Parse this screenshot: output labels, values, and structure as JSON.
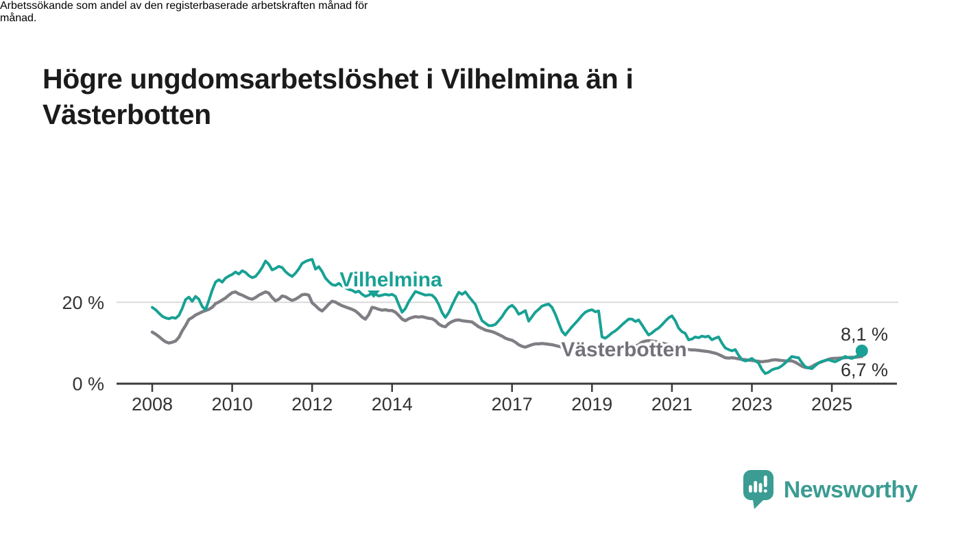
{
  "header": {
    "title_lines": [
      "Högre ungdomsarbetslöshet i Vilhelmina än i",
      "Västerbotten"
    ],
    "subtitle_lines": [
      "Arbetssökande som andel av den registerbaserade arbetskraften månad för",
      "månad."
    ]
  },
  "chart_data": {
    "type": "line",
    "title": "Högre ungdomsarbetslöshet i Vilhelmina än i Västerbotten",
    "subtitle": "Arbetssökande som andel av den registerbaserade arbetskraften månad för månad.",
    "x_start": {
      "year": 2008,
      "month": 1
    },
    "x_interval": "monthly",
    "x_tick_years": [
      2008,
      2010,
      2012,
      2014,
      2017,
      2019,
      2021,
      2023,
      2025
    ],
    "y_axis": {
      "ticks": [
        {
          "value": 0,
          "label": "0 %"
        },
        {
          "value": 20,
          "label": "20 %"
        }
      ],
      "ylim": [
        0,
        35
      ],
      "gridline_at": 20
    },
    "grid": "horizontal-only",
    "legend_position": "inline-labels",
    "series": [
      {
        "name": "Vilhelmina",
        "label": "Vilhelmina",
        "color": "#18a194",
        "end_label": "8,1 %",
        "end_value": 8.1,
        "values": [
          18.8,
          18.2,
          17.4,
          16.6,
          16.2,
          16.0,
          16.3,
          16.1,
          16.8,
          18.5,
          20.7,
          21.3,
          20.3,
          21.5,
          20.8,
          19.0,
          18.2,
          20.5,
          23.0,
          25.0,
          25.6,
          25.0,
          26.0,
          26.5,
          26.9,
          27.5,
          27.0,
          27.8,
          27.4,
          26.6,
          26.1,
          26.4,
          27.4,
          28.6,
          30.2,
          29.4,
          28.0,
          28.4,
          28.9,
          28.6,
          27.6,
          26.9,
          26.4,
          27.2,
          28.3,
          29.6,
          30.1,
          30.4,
          30.6,
          28.2,
          28.8,
          27.6,
          26.0,
          25.1,
          24.4,
          24.2,
          24.7,
          24.1,
          23.6,
          23.2,
          23.0,
          22.5,
          22.8,
          22.0,
          21.5,
          21.8,
          22.3,
          22.0,
          21.6,
          21.8,
          22.0,
          21.8,
          22.0,
          21.5,
          19.5,
          17.6,
          18.5,
          20.2,
          21.5,
          22.7,
          22.4,
          22.1,
          21.8,
          21.9,
          21.8,
          21.0,
          19.5,
          17.5,
          16.3,
          17.5,
          19.3,
          21.0,
          22.5,
          22.0,
          22.6,
          21.5,
          20.5,
          19.5,
          17.4,
          15.5,
          14.9,
          14.3,
          14.3,
          14.6,
          15.5,
          16.5,
          17.8,
          18.8,
          19.3,
          18.5,
          17.1,
          17.5,
          18.0,
          15.4,
          16.5,
          17.6,
          18.3,
          19.1,
          19.4,
          19.6,
          18.8,
          17.1,
          15.0,
          12.9,
          12.0,
          13.0,
          14.0,
          14.9,
          15.8,
          16.8,
          17.6,
          18.0,
          18.2,
          17.7,
          17.9,
          11.5,
          11.2,
          11.8,
          12.5,
          13.0,
          13.7,
          14.5,
          15.2,
          15.9,
          15.9,
          15.3,
          15.7,
          14.5,
          13.2,
          12.0,
          12.5,
          13.2,
          13.7,
          14.5,
          15.4,
          16.2,
          16.7,
          15.5,
          13.7,
          12.8,
          12.4,
          10.8,
          11.0,
          11.5,
          11.3,
          11.7,
          11.5,
          11.7,
          10.8,
          11.2,
          11.5,
          10.0,
          8.8,
          8.4,
          8.1,
          8.4,
          7.0,
          5.9,
          5.6,
          5.8,
          6.2,
          5.6,
          5.1,
          3.5,
          2.5,
          2.8,
          3.4,
          3.7,
          3.9,
          4.4,
          5.1,
          5.9,
          6.7,
          6.5,
          6.4,
          5.2,
          4.2,
          3.9,
          3.7,
          4.4,
          5.1,
          5.5,
          5.7,
          5.9,
          5.6,
          5.4,
          5.8,
          6.2,
          6.7,
          6.4,
          6.2,
          6.6,
          7.0,
          8.1
        ]
      },
      {
        "name": "Västerbotten",
        "label": "Västerbotten",
        "color": "#7f7e84",
        "label_color": "#73727a",
        "end_label": "6,7 %",
        "end_value": 6.7,
        "values": [
          12.7,
          12.2,
          11.6,
          10.9,
          10.3,
          10.0,
          10.2,
          10.5,
          11.4,
          13.0,
          14.3,
          15.8,
          16.3,
          16.9,
          17.3,
          17.7,
          18.0,
          18.3,
          18.8,
          19.7,
          20.1,
          20.6,
          21.1,
          21.8,
          22.4,
          22.6,
          22.1,
          21.8,
          21.4,
          21.0,
          20.8,
          21.2,
          21.8,
          22.2,
          22.6,
          22.3,
          21.2,
          20.4,
          20.8,
          21.6,
          21.4,
          20.9,
          20.5,
          20.8,
          21.3,
          21.9,
          22.0,
          21.8,
          19.9,
          19.2,
          18.4,
          17.9,
          18.7,
          19.6,
          20.3,
          20.1,
          19.6,
          19.2,
          18.9,
          18.6,
          18.3,
          17.9,
          17.2,
          16.4,
          15.9,
          17.0,
          18.8,
          18.6,
          18.3,
          18.1,
          18.2,
          18.0,
          18.0,
          17.6,
          16.8,
          15.9,
          15.5,
          16.0,
          16.3,
          16.5,
          16.4,
          16.5,
          16.3,
          16.1,
          16.0,
          15.5,
          14.7,
          14.2,
          14.0,
          14.8,
          15.3,
          15.6,
          15.7,
          15.5,
          15.4,
          15.3,
          15.2,
          14.6,
          14.0,
          13.6,
          13.2,
          13.0,
          12.8,
          12.5,
          12.1,
          11.7,
          11.2,
          10.9,
          10.7,
          10.2,
          9.6,
          9.2,
          9.0,
          9.3,
          9.6,
          9.8,
          9.8,
          9.9,
          9.8,
          9.7,
          9.6,
          9.4,
          9.2,
          9.0,
          8.9,
          9.0,
          9.1,
          9.2,
          9.1,
          9.0,
          8.9,
          8.9,
          8.8,
          8.7,
          8.6,
          8.6,
          8.5,
          8.6,
          8.7,
          8.8,
          8.8,
          8.9,
          8.9,
          9.0,
          9.1,
          9.2,
          9.6,
          10.2,
          10.5,
          10.6,
          10.5,
          10.4,
          10.2,
          10.0,
          9.8,
          9.6,
          9.4,
          9.2,
          9.0,
          8.8,
          8.6,
          8.4,
          8.3,
          8.3,
          8.2,
          8.1,
          8.0,
          7.9,
          7.7,
          7.5,
          7.2,
          6.8,
          6.4,
          6.3,
          6.4,
          6.3,
          6.1,
          6.0,
          5.9,
          5.8,
          5.7,
          5.6,
          5.5,
          5.4,
          5.5,
          5.6,
          5.8,
          5.9,
          5.8,
          5.7,
          5.6,
          5.6,
          5.6,
          5.3,
          4.8,
          4.3,
          4.0,
          3.9,
          4.2,
          4.7,
          5.1,
          5.4,
          5.7,
          6.0,
          6.2,
          6.25,
          6.3,
          6.35,
          6.4,
          6.45,
          6.5,
          6.5,
          6.6,
          6.7
        ]
      }
    ]
  },
  "footer": {
    "brand": "Newsworthy",
    "brand_color": "#3b9c93",
    "logo_icon": "speech-bubble-bar-chart-icon"
  }
}
